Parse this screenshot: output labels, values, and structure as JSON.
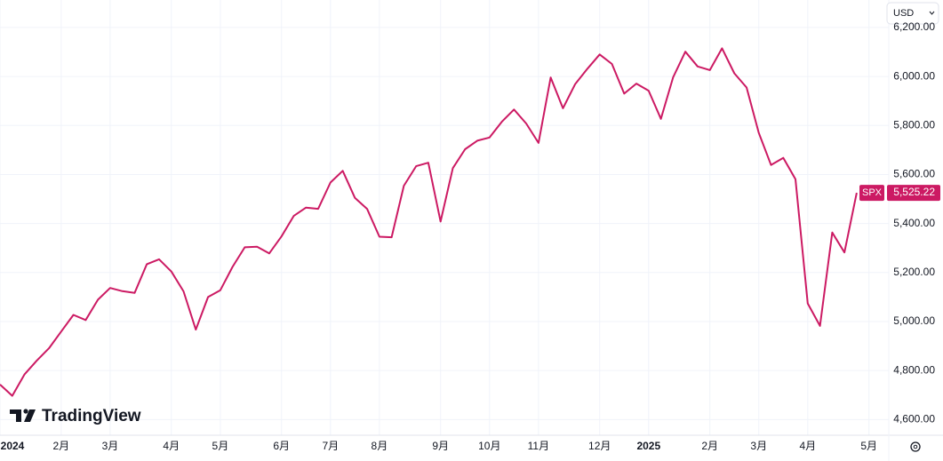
{
  "currency": "USD",
  "brand": "TradingView",
  "chart_data": {
    "type": "line",
    "categories": [
      "2024",
      null,
      null,
      null,
      null,
      "2月",
      null,
      null,
      null,
      "3月",
      null,
      null,
      null,
      null,
      "4月",
      null,
      null,
      null,
      "5月",
      null,
      null,
      null,
      null,
      "6月",
      null,
      null,
      null,
      "7月",
      null,
      null,
      null,
      "8月",
      null,
      null,
      null,
      null,
      "9月",
      null,
      null,
      null,
      "10月",
      null,
      null,
      null,
      "11月",
      null,
      null,
      null,
      null,
      "12月",
      null,
      null,
      null,
      "2025",
      null,
      null,
      null,
      null,
      "2月",
      null,
      null,
      null,
      "3月",
      null,
      null,
      null,
      "4月",
      null,
      null,
      null,
      null,
      "5月"
    ],
    "series": [
      {
        "name": "SPX",
        "color": "#cc1a63",
        "values": [
          4743,
          4697,
          4784,
          4840,
          4891,
          4959,
          5027,
          5006,
          5089,
          5137,
          5124,
          5117,
          5234,
          5254,
          5204,
          5123,
          4967,
          5100,
          5128,
          5223,
          5303,
          5305,
          5278,
          5347,
          5431,
          5465,
          5460,
          5567,
          5615,
          5505,
          5459,
          5346,
          5344,
          5554,
          5634,
          5648,
          5408,
          5626,
          5703,
          5738,
          5751,
          5815,
          5865,
          5808,
          5729,
          5996,
          5870,
          5969,
          6032,
          6090,
          6051,
          5930,
          5971,
          5942,
          5827,
          5997,
          6101,
          6041,
          6026,
          6115,
          6013,
          5955,
          5770,
          5639,
          5668,
          5581,
          5074,
          4982,
          5363,
          5282,
          5525.22,
          null
        ],
        "last_label": "5,525.22"
      }
    ],
    "ylim": [
      4536,
      6312
    ],
    "yticks": [
      {
        "value": 4600,
        "label": "4,600.00"
      },
      {
        "value": 4800,
        "label": "4,800.00"
      },
      {
        "value": 5000,
        "label": "5,000.00"
      },
      {
        "value": 5200,
        "label": "5,200.00"
      },
      {
        "value": 5400,
        "label": "5,400.00"
      },
      {
        "value": 5600,
        "label": "5,600.00"
      },
      {
        "value": 5800,
        "label": "5,800.00"
      },
      {
        "value": 6000,
        "label": "6,000.00"
      },
      {
        "value": 6200,
        "label": "6,200.00"
      }
    ],
    "grid": true
  }
}
